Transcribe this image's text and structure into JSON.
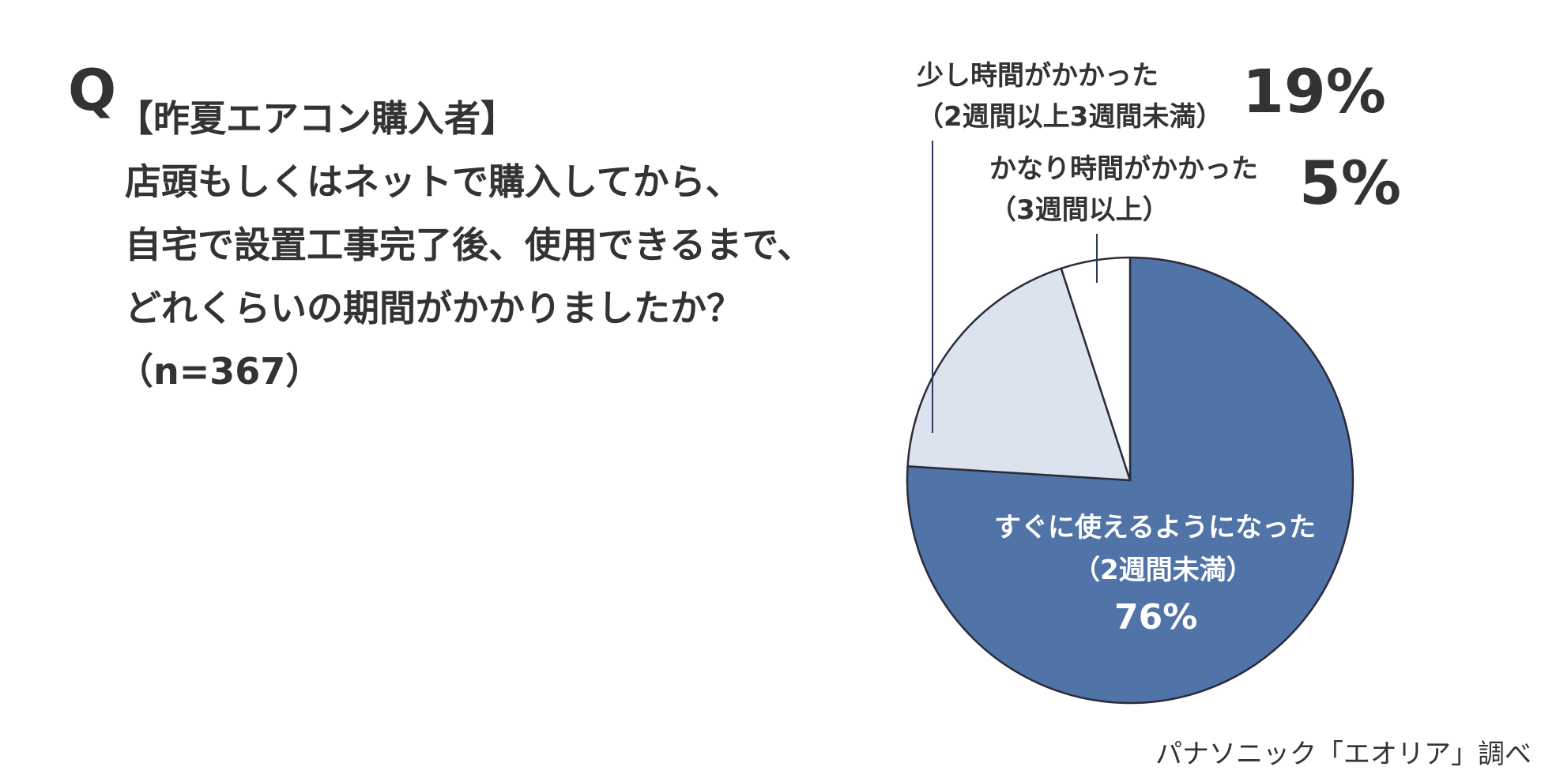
{
  "question": {
    "mark": "Q",
    "lines": [
      "【昨夏エアコン購入者】",
      "店頭もしくはネットで購入してから、",
      "自宅で設置工事完了後、使用できるまで、",
      "どれくらいの期間がかかりましたか？",
      "（n=367）"
    ]
  },
  "chart_data": {
    "type": "pie",
    "slices": [
      {
        "label": "すぐに使えるようになった",
        "sublabel": "（2週間未満）",
        "value": 76,
        "value_label": "76%",
        "color": "#5073a8"
      },
      {
        "label": "少し時間がかかった",
        "sublabel": "（2週間以上3週間未満）",
        "value": 19,
        "value_label": "19%",
        "color": "#dde3ee"
      },
      {
        "label": "かなり時間がかかった",
        "sublabel": "（3週間以上）",
        "value": 5,
        "value_label": "5%",
        "color": "#ffffff"
      }
    ],
    "stroke_color": "#2b2b3a"
  },
  "source": "パナソニック「エオリア」調べ"
}
